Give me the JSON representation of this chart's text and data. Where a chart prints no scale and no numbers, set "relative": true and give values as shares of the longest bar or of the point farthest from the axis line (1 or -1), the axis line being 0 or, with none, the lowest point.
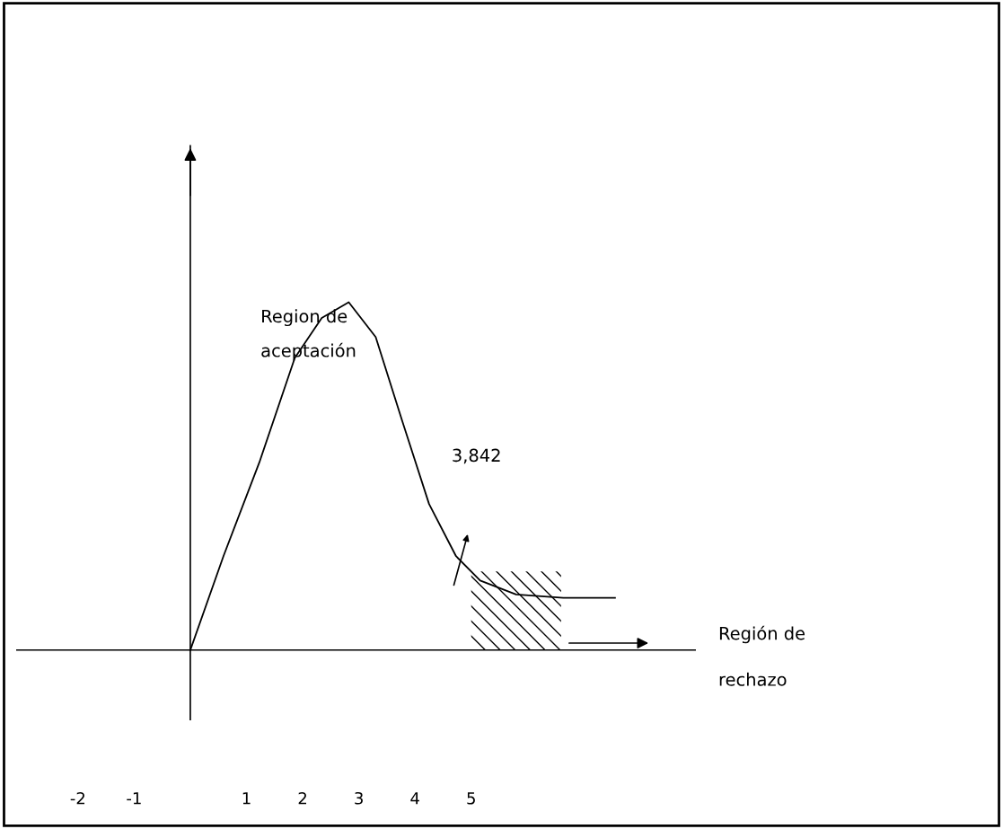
{
  "chart_data": {
    "type": "line",
    "relative": true,
    "color": "#000000",
    "x": [
      0,
      0.59,
      1.23,
      1.86,
      2.34,
      2.82,
      3.3,
      3.77,
      4.25,
      4.73,
      5.16,
      5.8,
      6.64,
      7.56
    ],
    "values": [
      0,
      0.27,
      0.54,
      0.84,
      0.955,
      1.0,
      0.9,
      0.66,
      0.42,
      0.27,
      0.2,
      0.16,
      0.15,
      0.15
    ],
    "xlim": [
      -3.1,
      9.0
    ],
    "xticks": [
      -2,
      -1,
      1,
      2,
      3,
      4,
      5
    ],
    "tick_labels": "x",
    "grid": false,
    "bands": [
      {
        "axis": "x",
        "from": 5.0,
        "to": 6.6,
        "label": "Región de\nrechazo"
      }
    ],
    "annotations": [
      "Region de\naceptación",
      "3,842"
    ]
  }
}
